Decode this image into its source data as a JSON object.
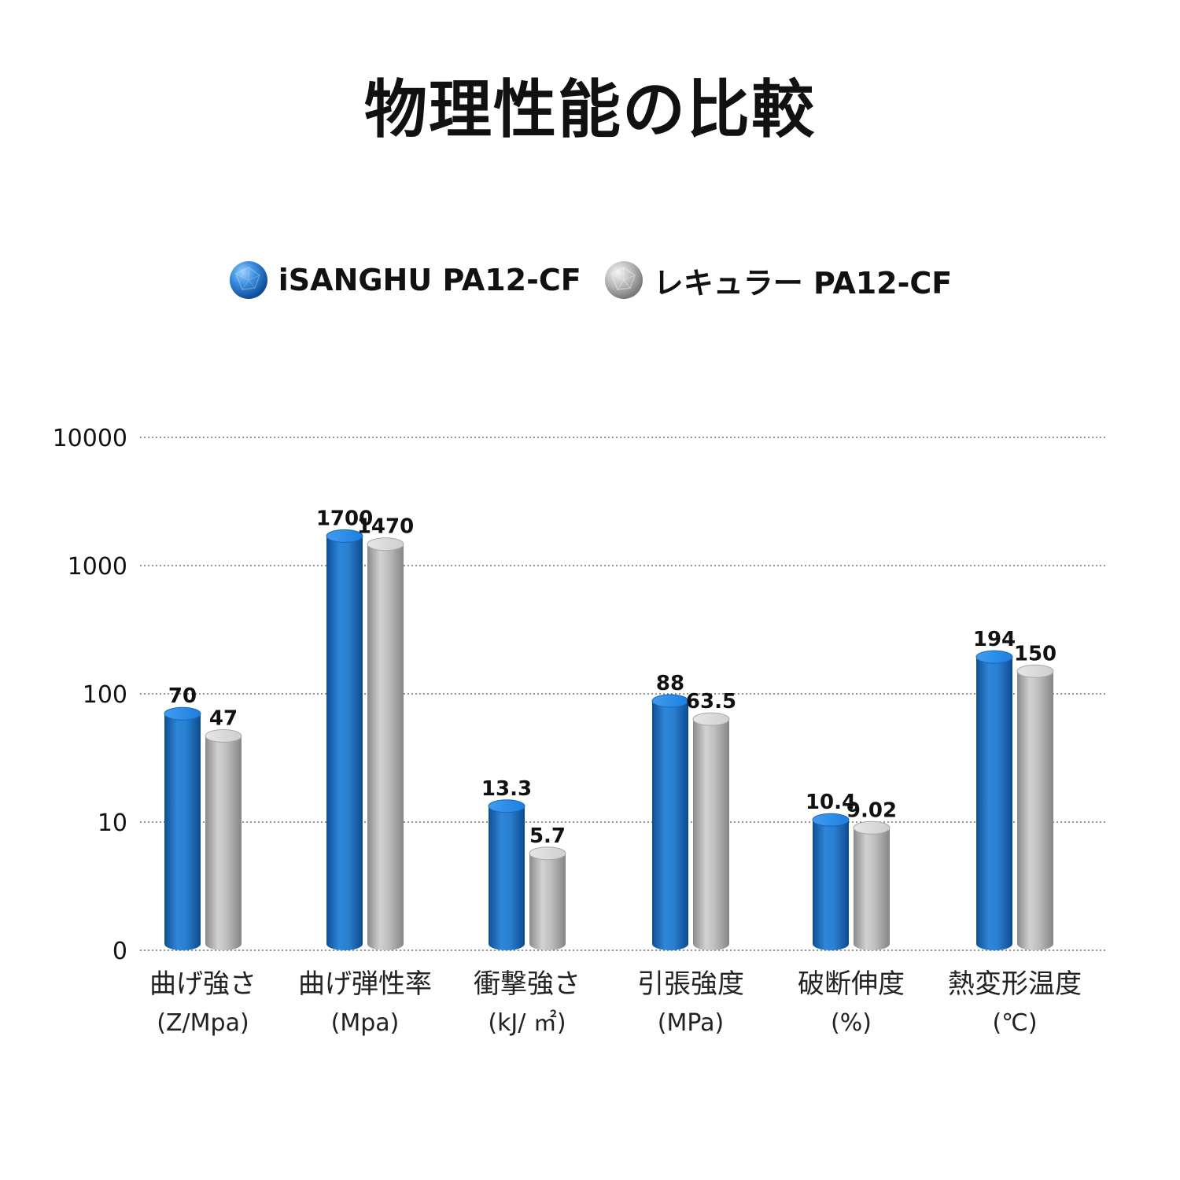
{
  "chart_data": {
    "type": "bar",
    "title": "物理性能の比較",
    "xlabel": "",
    "ylabel": "",
    "y_scale": "log",
    "ylim": [
      0,
      10000
    ],
    "y_ticks": [
      "0",
      "10",
      "100",
      "1000",
      "10000"
    ],
    "grid": true,
    "legend_position": "top",
    "categories": [
      {
        "label": "曲げ強さ",
        "unit": "(Z/Mpa)"
      },
      {
        "label": "曲げ弾性率",
        "unit": "(Mpa)"
      },
      {
        "label": "衝撃強さ",
        "unit": "(kJ/ ㎡)"
      },
      {
        "label": "引張強度",
        "unit": "(MPa)"
      },
      {
        "label": "破断伸度",
        "unit": "(%)"
      },
      {
        "label": "熱変形温度",
        "unit": "(℃)"
      }
    ],
    "series": [
      {
        "name": "iSANGHU PA12-CF",
        "color": "#2a7fd0",
        "values": [
          70,
          1700,
          13.3,
          88,
          10.4,
          194
        ],
        "value_labels": [
          "70",
          "1700",
          "13.3",
          "88",
          "10.4",
          "194"
        ]
      },
      {
        "name": "レキュラー PA12-CF",
        "color": "#b8b8b8",
        "values": [
          47,
          1470,
          5.7,
          63.5,
          9.02,
          150
        ],
        "value_labels": [
          "47",
          "1470",
          "5.7",
          "63.5",
          "9.02",
          "150"
        ]
      }
    ]
  }
}
